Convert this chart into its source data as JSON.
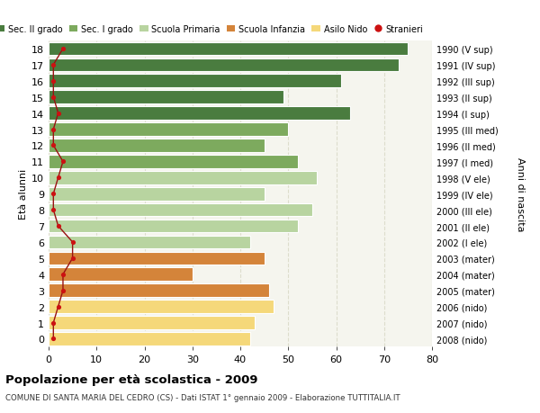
{
  "ages": [
    18,
    17,
    16,
    15,
    14,
    13,
    12,
    11,
    10,
    9,
    8,
    7,
    6,
    5,
    4,
    3,
    2,
    1,
    0
  ],
  "years": [
    "1990 (V sup)",
    "1991 (IV sup)",
    "1992 (III sup)",
    "1993 (II sup)",
    "1994 (I sup)",
    "1995 (III med)",
    "1996 (II med)",
    "1997 (I med)",
    "1998 (V ele)",
    "1999 (IV ele)",
    "2000 (III ele)",
    "2001 (II ele)",
    "2002 (I ele)",
    "2003 (mater)",
    "2004 (mater)",
    "2005 (mater)",
    "2006 (nido)",
    "2007 (nido)",
    "2008 (nido)"
  ],
  "bar_values": [
    75,
    73,
    61,
    49,
    63,
    50,
    45,
    52,
    56,
    45,
    55,
    52,
    42,
    45,
    30,
    46,
    47,
    43,
    42
  ],
  "stranieri": [
    3,
    1,
    1,
    1,
    2,
    1,
    1,
    3,
    2,
    1,
    1,
    2,
    5,
    5,
    3,
    3,
    2,
    1,
    1
  ],
  "bar_colors": [
    "#4a7c3f",
    "#4a7c3f",
    "#4a7c3f",
    "#4a7c3f",
    "#4a7c3f",
    "#7daa5e",
    "#7daa5e",
    "#7daa5e",
    "#b8d4a0",
    "#b8d4a0",
    "#b8d4a0",
    "#b8d4a0",
    "#b8d4a0",
    "#d4843a",
    "#d4843a",
    "#d4843a",
    "#f5d87a",
    "#f5d87a",
    "#f5d87a"
  ],
  "legend_labels": [
    "Sec. II grado",
    "Sec. I grado",
    "Scuola Primaria",
    "Scuola Infanzia",
    "Asilo Nido",
    "Stranieri"
  ],
  "legend_colors": [
    "#4a7c3f",
    "#7daa5e",
    "#b8d4a0",
    "#d4843a",
    "#f5d87a",
    "#cc1111"
  ],
  "ylabel_left": "Età alunni",
  "ylabel_right": "Anni di nascita",
  "title": "Popolazione per età scolastica - 2009",
  "subtitle": "COMUNE DI SANTA MARIA DEL CEDRO (CS) - Dati ISTAT 1° gennaio 2009 - Elaborazione TUTTITALIA.IT",
  "xlim": [
    0,
    80
  ],
  "background_color": "#ffffff",
  "plot_bg_color": "#f5f5ee",
  "grid_color": "#ddddcc"
}
